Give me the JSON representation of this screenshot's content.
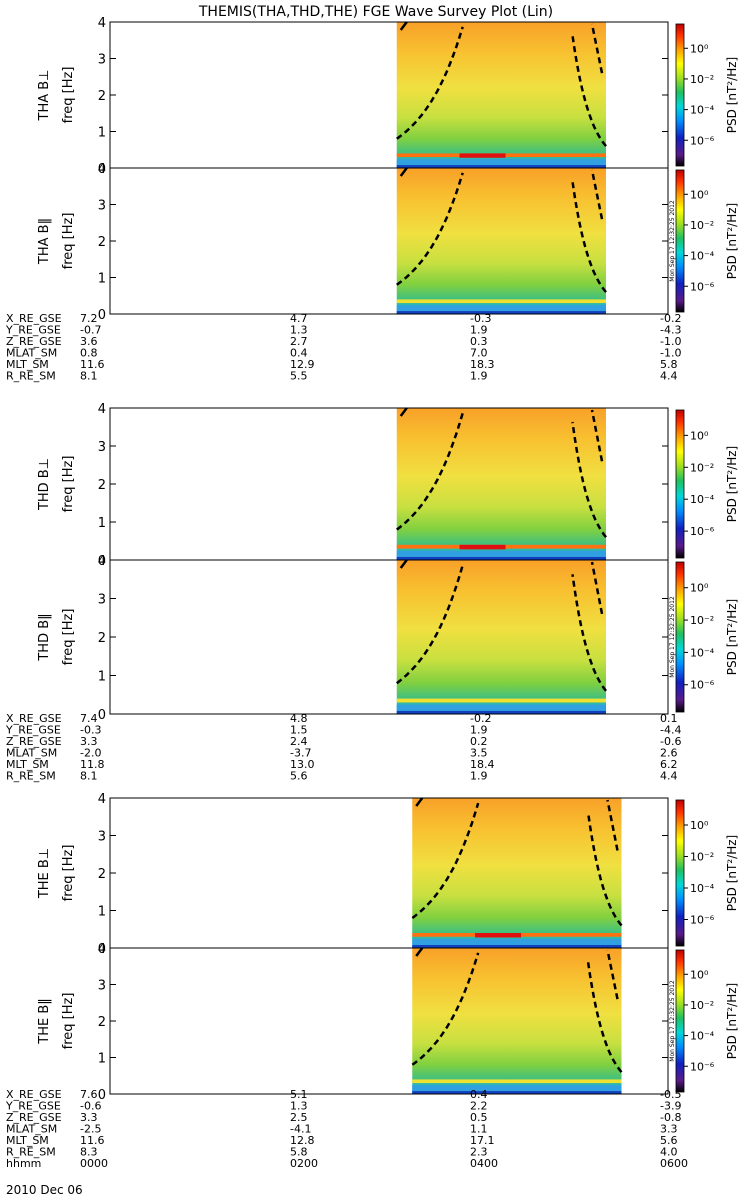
{
  "title": "THEMIS(THA,THD,THE) FGE Wave Survey Plot (Lin)",
  "colorbar_label": "PSD [nT²/Hz]",
  "colorbar_ticks": [
    "10⁰",
    "10⁻²",
    "10⁻⁴",
    "10⁻⁶"
  ],
  "stamp": "Mon Sep 17 12:32:25 2012",
  "freq_label": "freq [Hz]",
  "freq_ticks": [
    "0",
    "1",
    "2",
    "3",
    "4"
  ],
  "chart_data": [
    {
      "type": "heatmap",
      "probe": "THA",
      "panels": [
        {
          "name": "THA B⊥",
          "ylabel": "freq [Hz]",
          "ylim": [
            0,
            4
          ]
        },
        {
          "name": "THA B‖",
          "ylabel": "freq [Hz]",
          "ylim": [
            0,
            4
          ]
        }
      ],
      "data_interval": [
        "0305",
        "0520"
      ],
      "xlim": [
        "0000",
        "0600"
      ],
      "colorscale": "log PSD [nT²/Hz]",
      "colorbar_range": [
        1e-07,
        10
      ],
      "ephemeris": {
        "rows": [
          {
            "label": "X_RE_GSE",
            "values": [
              "7.2",
              "4.7",
              "-0.3",
              "-0.2"
            ]
          },
          {
            "label": "Y_RE_GSE",
            "values": [
              "-0.7",
              "1.3",
              "1.9",
              "-4.3"
            ]
          },
          {
            "label": "Z_RE_GSE",
            "values": [
              "3.6",
              "2.7",
              "0.3",
              "-1.0"
            ]
          },
          {
            "label": "MLAT_SM",
            "values": [
              "0.8",
              "0.4",
              "7.0",
              "-1.0"
            ]
          },
          {
            "label": "MLT_SM",
            "values": [
              "11.6",
              "12.9",
              "18.3",
              "5.8"
            ]
          },
          {
            "label": "R_RE_SM",
            "values": [
              "8.1",
              "5.5",
              "1.9",
              "4.4"
            ]
          }
        ]
      }
    },
    {
      "type": "heatmap",
      "probe": "THD",
      "panels": [
        {
          "name": "THD B⊥",
          "ylabel": "freq [Hz]",
          "ylim": [
            0,
            4
          ]
        },
        {
          "name": "THD B‖",
          "ylabel": "freq [Hz]",
          "ylim": [
            0,
            4
          ]
        }
      ],
      "data_interval": [
        "0305",
        "0520"
      ],
      "xlim": [
        "0000",
        "0600"
      ],
      "colorscale": "log PSD [nT²/Hz]",
      "colorbar_range": [
        1e-07,
        10
      ],
      "ephemeris": {
        "rows": [
          {
            "label": "X_RE_GSE",
            "values": [
              "7.4",
              "4.8",
              "-0.2",
              "0.1"
            ]
          },
          {
            "label": "Y_RE_GSE",
            "values": [
              "-0.3",
              "1.5",
              "1.9",
              "-4.4"
            ]
          },
          {
            "label": "Z_RE_GSE",
            "values": [
              "3.3",
              "2.4",
              "0.2",
              "-0.6"
            ]
          },
          {
            "label": "MLAT_SM",
            "values": [
              "-2.0",
              "-3.7",
              "3.5",
              "2.6"
            ]
          },
          {
            "label": "MLT_SM",
            "values": [
              "11.8",
              "13.0",
              "18.4",
              "6.2"
            ]
          },
          {
            "label": "R_RE_SM",
            "values": [
              "8.1",
              "5.6",
              "1.9",
              "4.4"
            ]
          }
        ]
      }
    },
    {
      "type": "heatmap",
      "probe": "THE",
      "panels": [
        {
          "name": "THE B⊥",
          "ylabel": "freq [Hz]",
          "ylim": [
            0,
            4
          ]
        },
        {
          "name": "THE B‖",
          "ylabel": "freq [Hz]",
          "ylim": [
            0,
            4
          ]
        }
      ],
      "data_interval": [
        "0315",
        "0530"
      ],
      "xlim": [
        "0000",
        "0600"
      ],
      "colorscale": "log PSD [nT²/Hz]",
      "colorbar_range": [
        1e-07,
        10
      ],
      "ephemeris": {
        "rows": [
          {
            "label": "X_RE_GSE",
            "values": [
              "7.6",
              "5.1",
              "0.4",
              "-0.5"
            ]
          },
          {
            "label": "Y_RE_GSE",
            "values": [
              "-0.6",
              "1.3",
              "2.2",
              "-3.9"
            ]
          },
          {
            "label": "Z_RE_GSE",
            "values": [
              "3.3",
              "2.5",
              "0.5",
              "-0.8"
            ]
          },
          {
            "label": "MLAT_SM",
            "values": [
              "-2.5",
              "-4.1",
              "1.1",
              "3.3"
            ]
          },
          {
            "label": "MLT_SM",
            "values": [
              "11.6",
              "12.8",
              "17.1",
              "5.6"
            ]
          },
          {
            "label": "R_RE_SM",
            "values": [
              "8.3",
              "5.8",
              "2.3",
              "4.0"
            ]
          }
        ],
        "time_row": {
          "label": "hhmm",
          "values": [
            "0000",
            "0200",
            "0400",
            "0600"
          ]
        }
      }
    }
  ],
  "date": "2010 Dec 06",
  "colors": {
    "background": "#ffffff",
    "colorbar": [
      "#000000",
      "#5a1a8a",
      "#1020c0",
      "#0090ff",
      "#00d8d8",
      "#20c060",
      "#a0e020",
      "#ffff00",
      "#ffa000",
      "#ff3000",
      "#c00000"
    ]
  }
}
